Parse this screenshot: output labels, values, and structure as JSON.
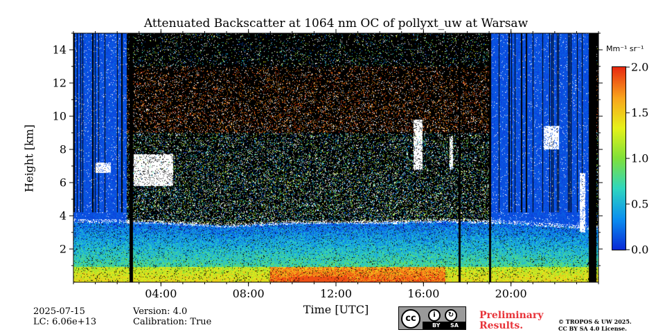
{
  "chart_data": {
    "type": "heatmap",
    "title": "Attenuated Backscatter at 1064 nm OC of pollyxt_uw at Warsaw",
    "xlabel": "Time [UTC]",
    "ylabel": "Height [km]",
    "x_range_hours": [
      0,
      24
    ],
    "y_range_km": [
      0,
      15
    ],
    "x_ticks": [
      {
        "value": 4,
        "label": "04:00"
      },
      {
        "value": 8,
        "label": "08:00"
      },
      {
        "value": 12,
        "label": "12:00"
      },
      {
        "value": 16,
        "label": "16:00"
      },
      {
        "value": 20,
        "label": "20:00"
      }
    ],
    "y_ticks": [
      {
        "value": 2,
        "label": "2"
      },
      {
        "value": 4,
        "label": "4"
      },
      {
        "value": 6,
        "label": "6"
      },
      {
        "value": 8,
        "label": "8"
      },
      {
        "value": 10,
        "label": "10"
      },
      {
        "value": 12,
        "label": "12"
      },
      {
        "value": 14,
        "label": "14"
      }
    ],
    "colorbar": {
      "unit": "Mm⁻¹ sr⁻¹",
      "range": [
        0.0,
        2.0
      ],
      "ticks": [
        {
          "value": 0.0,
          "label": "0.0"
        },
        {
          "value": 0.5,
          "label": "0.5"
        },
        {
          "value": 1.0,
          "label": "1.0"
        },
        {
          "value": 1.5,
          "label": "1.5"
        },
        {
          "value": 2.0,
          "label": "2.0"
        }
      ],
      "colormap": [
        "#0a2bd6",
        "#0a8ff0",
        "#2fd6c0",
        "#7fe03a",
        "#e6f21a",
        "#f9a41c",
        "#e82a10"
      ]
    },
    "no_signal_periods_hours": [
      [
        2.55,
        2.72
      ],
      [
        17.6,
        17.7
      ],
      [
        19.0,
        19.1
      ],
      [
        23.55,
        23.9
      ]
    ],
    "blue_background_periods_hours": [
      [
        0.0,
        2.45
      ],
      [
        19.0,
        23.55
      ]
    ],
    "clouds": [
      {
        "t_start": 2.75,
        "t_end": 4.55,
        "h_bottom": 5.8,
        "h_top": 7.7
      },
      {
        "t_start": 1.0,
        "t_end": 1.7,
        "h_bottom": 6.6,
        "h_top": 7.2
      },
      {
        "t_start": 15.55,
        "t_end": 15.95,
        "h_bottom": 6.8,
        "h_top": 9.8
      },
      {
        "t_start": 17.2,
        "t_end": 17.35,
        "h_bottom": 6.8,
        "h_top": 8.8
      },
      {
        "t_start": 21.5,
        "t_end": 22.2,
        "h_bottom": 8.0,
        "h_top": 9.4
      },
      {
        "t_start": 23.15,
        "t_end": 23.4,
        "h_bottom": 3.0,
        "h_top": 6.6
      }
    ],
    "boundary_layer_top_km": [
      {
        "t": 0.0,
        "h": 3.7
      },
      {
        "t": 4.0,
        "h": 3.6
      },
      {
        "t": 7.0,
        "h": 3.4
      },
      {
        "t": 10.0,
        "h": 3.6
      },
      {
        "t": 14.0,
        "h": 3.6
      },
      {
        "t": 17.0,
        "h": 3.7
      },
      {
        "t": 20.0,
        "h": 3.6
      },
      {
        "t": 23.5,
        "h": 3.3
      }
    ],
    "surface_layer_max_backscatter": 2.0
  },
  "footer": {
    "date": "2025-07-15",
    "lc": "LC: 6.06e+13",
    "version": "Version: 4.0",
    "calibration": "Calibration: True",
    "preliminary_line1": "Preliminary",
    "preliminary_line2": "Results.",
    "license_line1": "© TROPOS & UW 2025.",
    "license_line2": "CC BY SA 4.0 License.",
    "cc_text": "cc",
    "by_text": "BY",
    "sa_text": "SA"
  }
}
